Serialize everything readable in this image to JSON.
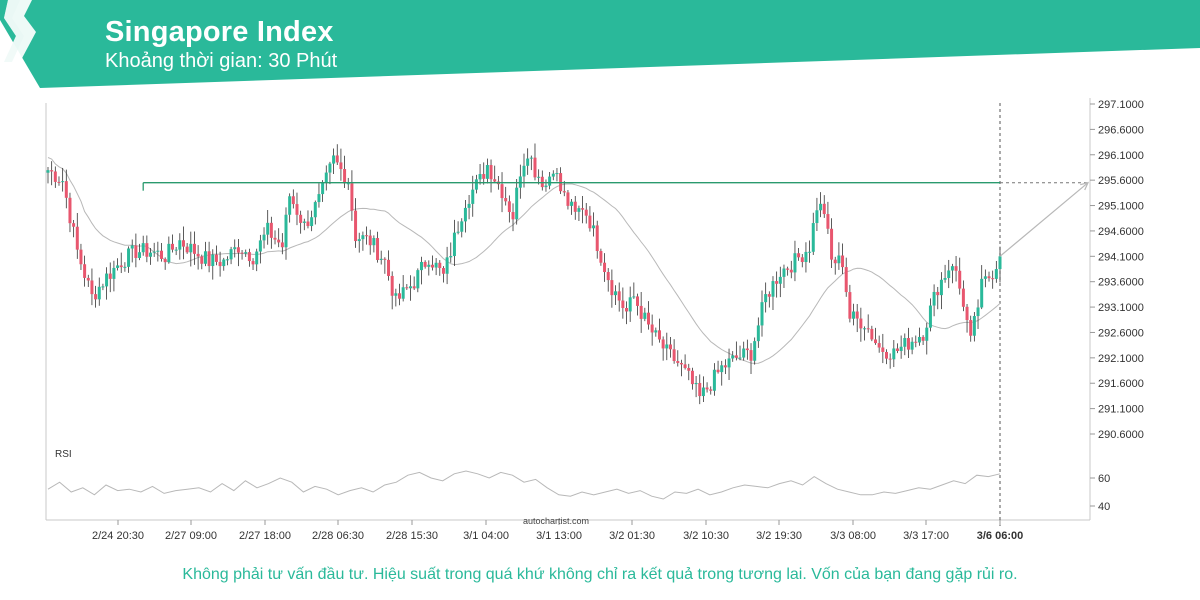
{
  "header": {
    "title": "Singapore Index",
    "subtitle": "Khoảng thời gian: 30 Phút",
    "color": "#2ab99a"
  },
  "footer": {
    "disclaimer": "Không phải tư vấn đầu tư. Hiệu suất trong quá khứ không chỉ ra kết quả trong tương lai. Vốn của bạn đang gặp rủi ro."
  },
  "chart_data": {
    "type": "candlestick",
    "watermark": "autochartist.com",
    "y_ticks": [
      "297.1000",
      "296.6000",
      "296.1000",
      "295.6000",
      "295.1000",
      "294.6000",
      "294.1000",
      "293.6000",
      "293.1000",
      "292.6000",
      "292.1000",
      "291.6000",
      "291.1000",
      "290.6000"
    ],
    "ylim": [
      290.5,
      297.1
    ],
    "x_labels": [
      "2/24 20:30",
      "2/27 09:00",
      "2/27 18:00",
      "2/28 06:30",
      "2/28 15:30",
      "3/1 04:00",
      "3/1 13:00",
      "3/2 01:30",
      "3/2 10:30",
      "3/2 19:30",
      "3/3 08:00",
      "3/3 17:00",
      "3/6 06:00"
    ],
    "resistance_level": 295.55,
    "forecast_target": 295.55,
    "close_path": [
      [
        0,
        295.8
      ],
      [
        4,
        295.6
      ],
      [
        8,
        294.2
      ],
      [
        12,
        293.3
      ],
      [
        16,
        293.7
      ],
      [
        20,
        294.0
      ],
      [
        24,
        294.2
      ],
      [
        28,
        294.2
      ],
      [
        32,
        294.1
      ],
      [
        36,
        294.4
      ],
      [
        40,
        294.2
      ],
      [
        44,
        294.0
      ],
      [
        48,
        294.0
      ],
      [
        52,
        294.3
      ],
      [
        56,
        294.1
      ],
      [
        60,
        294.6
      ],
      [
        64,
        294.3
      ],
      [
        66,
        295.3
      ],
      [
        70,
        294.7
      ],
      [
        74,
        295.2
      ],
      [
        78,
        296.0
      ],
      [
        82,
        295.6
      ],
      [
        84,
        294.5
      ],
      [
        88,
        294.4
      ],
      [
        92,
        294.0
      ],
      [
        95,
        293.2
      ],
      [
        100,
        293.6
      ],
      [
        104,
        294.1
      ],
      [
        108,
        293.7
      ],
      [
        110,
        294.2
      ],
      [
        114,
        295.2
      ],
      [
        118,
        295.6
      ],
      [
        120,
        295.9
      ],
      [
        124,
        295.4
      ],
      [
        127,
        294.9
      ],
      [
        129,
        295.8
      ],
      [
        131,
        296.2
      ],
      [
        133,
        295.8
      ],
      [
        136,
        295.5
      ],
      [
        138,
        295.9
      ],
      [
        140,
        295.4
      ],
      [
        144,
        294.9
      ],
      [
        146,
        295.1
      ],
      [
        148,
        294.8
      ],
      [
        152,
        293.9
      ],
      [
        154,
        293.5
      ],
      [
        158,
        293.0
      ],
      [
        160,
        293.3
      ],
      [
        164,
        292.7
      ],
      [
        166,
        292.5
      ],
      [
        169,
        292.2
      ],
      [
        172,
        292.0
      ],
      [
        175,
        291.7
      ],
      [
        178,
        291.3
      ],
      [
        181,
        291.6
      ],
      [
        184,
        291.9
      ],
      [
        188,
        292.1
      ],
      [
        192,
        292.2
      ],
      [
        196,
        293.3
      ],
      [
        200,
        293.8
      ],
      [
        204,
        294.0
      ],
      [
        208,
        294.3
      ],
      [
        210,
        295.1
      ],
      [
        212,
        295.0
      ],
      [
        214,
        294.0
      ],
      [
        217,
        294.0
      ],
      [
        219,
        292.9
      ],
      [
        223,
        292.8
      ],
      [
        227,
        292.3
      ],
      [
        231,
        292.2
      ],
      [
        235,
        292.4
      ],
      [
        239,
        292.6
      ],
      [
        243,
        293.5
      ],
      [
        247,
        294.0
      ],
      [
        250,
        293.2
      ],
      [
        252,
        292.4
      ],
      [
        255,
        293.5
      ],
      [
        258,
        293.8
      ],
      [
        260,
        294.1
      ]
    ],
    "rsi": {
      "label": "RSI",
      "ticks": [
        "60",
        "40"
      ],
      "ylim": [
        30,
        80
      ],
      "values": [
        52,
        57,
        50,
        53,
        48,
        55,
        51,
        52,
        50,
        54,
        49,
        51,
        52,
        53,
        50,
        56,
        51,
        58,
        53,
        56,
        60,
        57,
        50,
        54,
        52,
        48,
        51,
        53,
        50,
        55,
        57,
        62,
        64,
        60,
        58,
        63,
        65,
        63,
        60,
        64,
        62,
        57,
        59,
        53,
        48,
        47,
        50,
        48,
        50,
        52,
        49,
        51,
        47,
        45,
        50,
        49,
        52,
        48,
        50,
        53,
        55,
        54,
        53,
        56,
        58,
        55,
        61,
        56,
        52,
        50,
        48,
        48,
        50,
        49,
        51,
        53,
        52,
        55,
        58,
        56,
        62,
        61,
        63
      ]
    }
  }
}
